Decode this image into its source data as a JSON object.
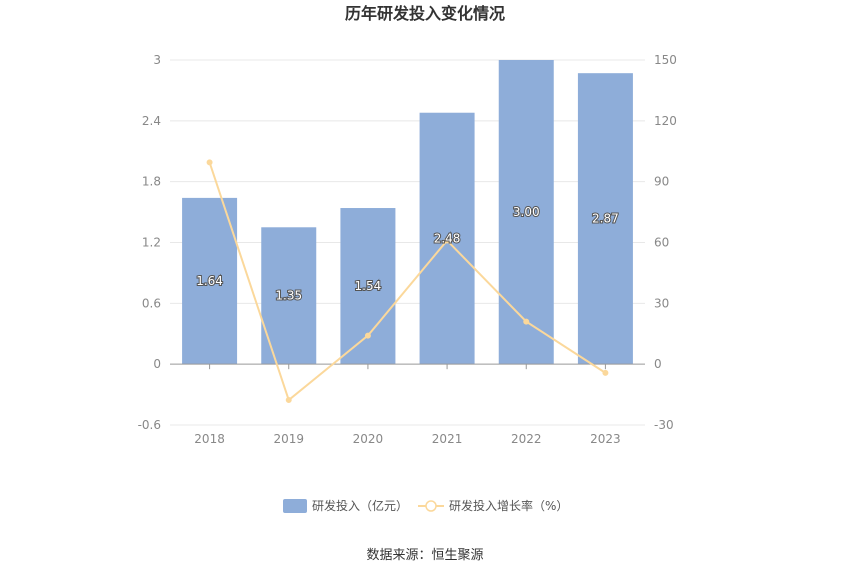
{
  "chart_data": {
    "type": "bar",
    "title": "历年研发投入变化情况",
    "categories": [
      "2018",
      "2019",
      "2020",
      "2021",
      "2022",
      "2023"
    ],
    "series": [
      {
        "name": "研发投入（亿元）",
        "type": "bar",
        "axis": "left",
        "values": [
          1.64,
          1.35,
          1.54,
          2.48,
          3.0,
          2.87
        ],
        "labels": [
          "1.64",
          "1.35",
          "1.54",
          "2.48",
          "3.00",
          "2.87"
        ]
      },
      {
        "name": "研发投入增长率（%）",
        "type": "line",
        "axis": "right",
        "values": [
          99.5,
          -17.7,
          14.1,
          61.0,
          21.0,
          -4.3
        ]
      }
    ],
    "left_axis": {
      "ylim": [
        -0.6,
        3
      ],
      "ticks": [
        "-0.6",
        "0",
        "0.6",
        "1.2",
        "1.8",
        "2.4",
        "3"
      ]
    },
    "right_axis": {
      "ylim": [
        -30,
        150
      ],
      "ticks": [
        "-30",
        "0",
        "30",
        "60",
        "90",
        "120",
        "150"
      ]
    },
    "grid": true,
    "legend_position": "bottom",
    "colors": {
      "bar": "#8eadd9",
      "line": "#fbd89b",
      "grid": "#e8e8e8",
      "axis": "#999999"
    }
  },
  "source_text": "数据来源：恒生聚源"
}
